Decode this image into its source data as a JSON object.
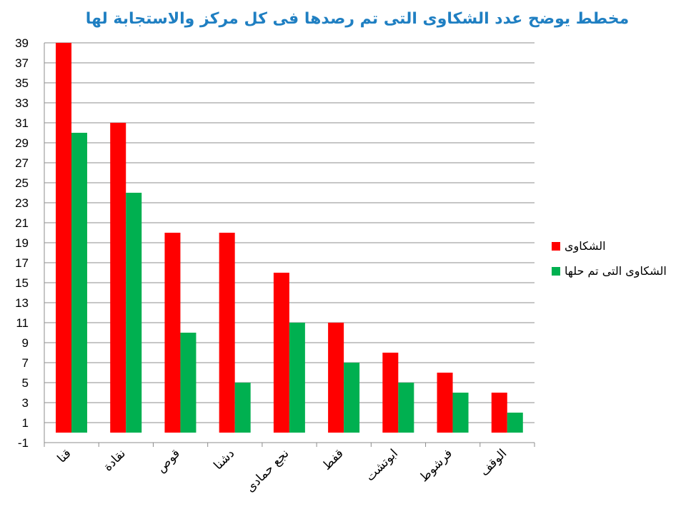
{
  "chart_data": {
    "type": "bar",
    "title": "مخطط يوضح عدد الشكاوى التى تم رصدها فى كل مركز والاستجابة لها",
    "categories": [
      "قنا",
      "نقادة",
      "قوص",
      "دشنا",
      "نجع حمادى",
      "قفط",
      "ابوتشت",
      "فرشوط",
      "الوقف"
    ],
    "series": [
      {
        "name": "الشكاوى",
        "color": "#ff0000",
        "values": [
          39,
          31,
          20,
          20,
          16,
          11,
          8,
          6,
          4
        ]
      },
      {
        "name": "الشكاوى التى تم حلها",
        "color": "#00b050",
        "values": [
          30,
          24,
          10,
          5,
          11,
          7,
          5,
          4,
          2
        ]
      }
    ],
    "ylim": [
      -1,
      39
    ],
    "yticks": [
      -1,
      1,
      3,
      5,
      7,
      9,
      11,
      13,
      15,
      17,
      19,
      21,
      23,
      25,
      27,
      29,
      31,
      33,
      35,
      37,
      39
    ],
    "grid": true,
    "legend": "right"
  }
}
